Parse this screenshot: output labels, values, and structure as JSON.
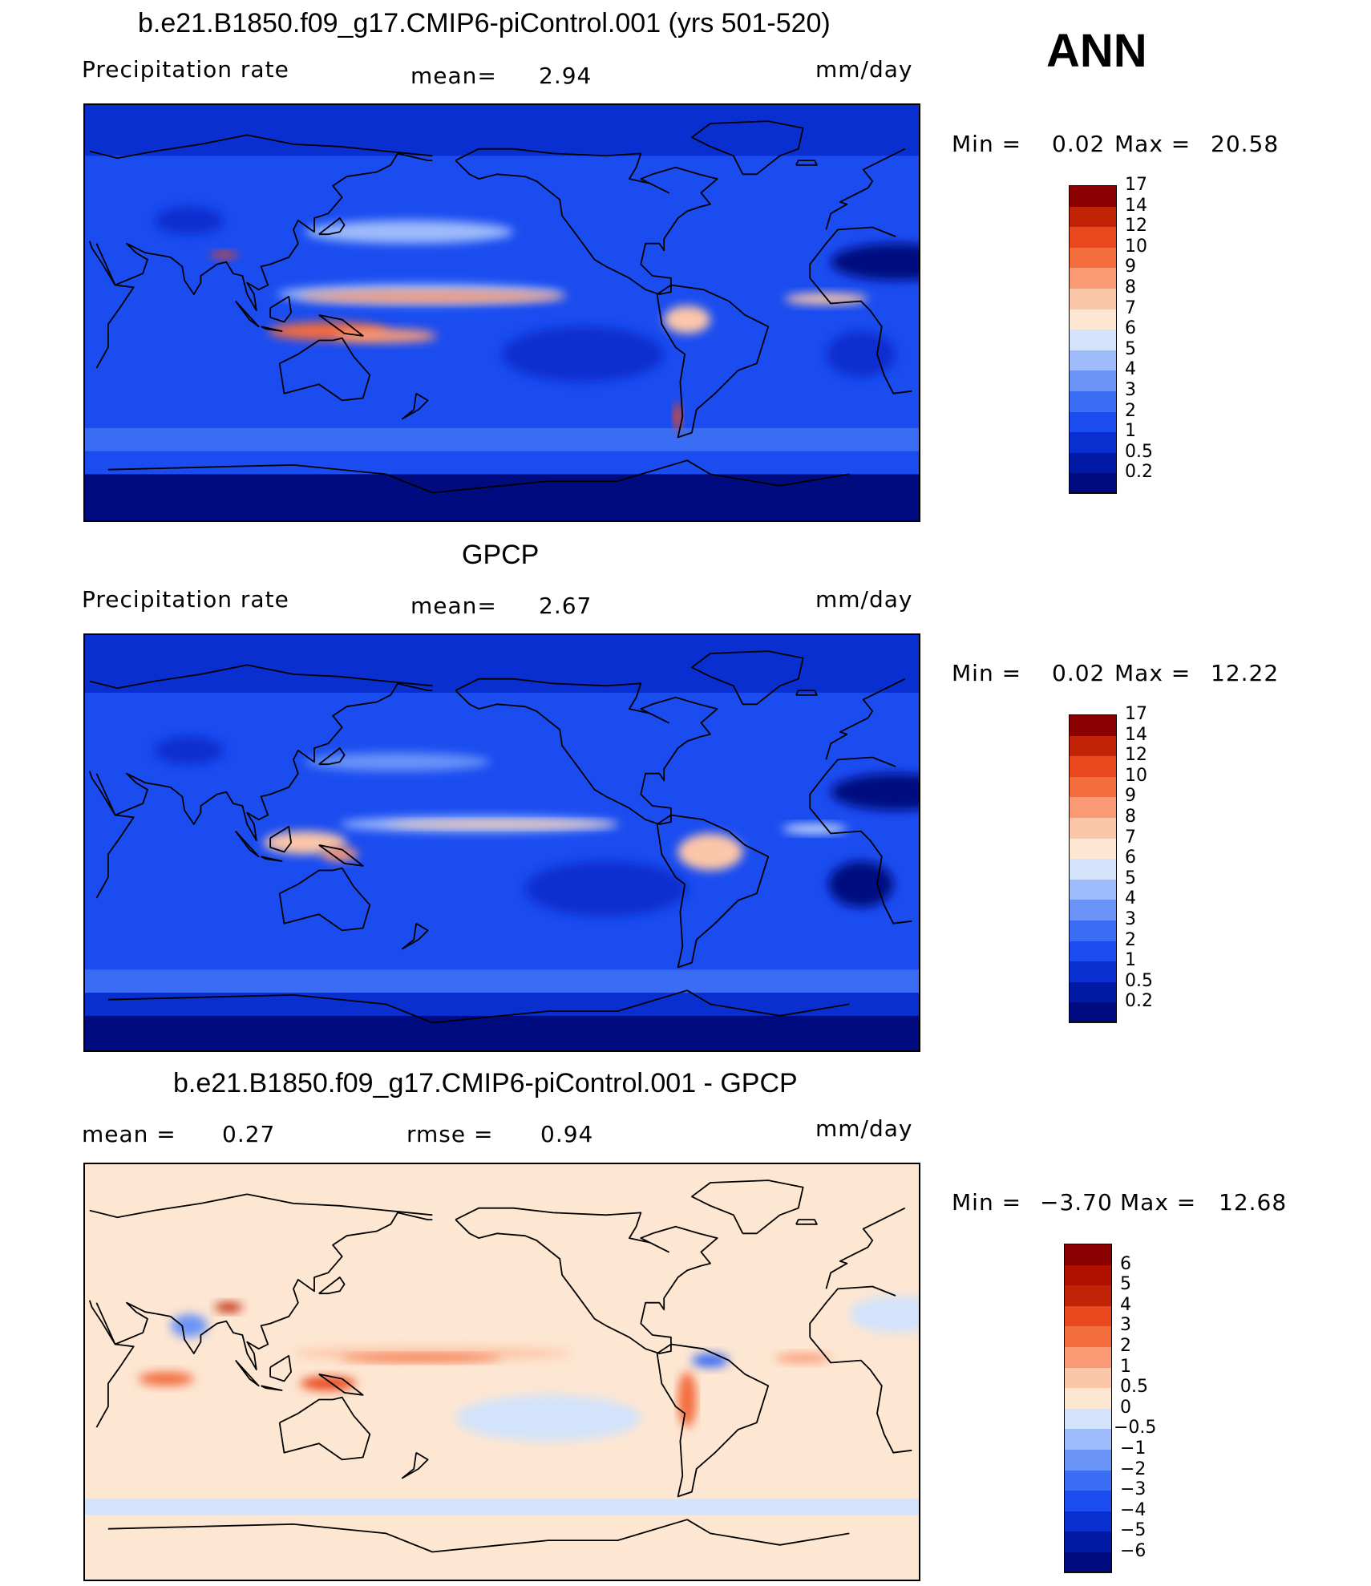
{
  "season": "ANN",
  "panels": [
    {
      "id": "model",
      "title": "b.e21.B1850.f09_g17.CMIP6-piControl.001 (yrs 501-520)",
      "left_label": "Precipitation  rate",
      "mid_label": "mean=",
      "mid_value": "2.94",
      "units": "mm/day",
      "min_label": "Min  =",
      "min_value": "0.02",
      "max_label": "Max  =",
      "max_value": "20.58",
      "colorbar": {
        "colors": [
          "#000b80",
          "#001aa6",
          "#0a2fd0",
          "#1a4cf0",
          "#3b6cf4",
          "#6b94f8",
          "#9ebbfb",
          "#d2e3fb",
          "#fde6d2",
          "#fcc6a8",
          "#f99a74",
          "#f36c3e",
          "#e9471d",
          "#c02306",
          "#8b0000"
        ],
        "labels": [
          "0.2",
          "0.5",
          "1",
          "2",
          "3",
          "4",
          "5",
          "6",
          "7",
          "8",
          "9",
          "10",
          "12",
          "14",
          "17"
        ]
      },
      "field": {
        "background": "#1a4cf0",
        "zonal_bands": [
          {
            "lat": [
              90,
              68
            ],
            "color": "#0a2fd0"
          },
          {
            "lat": [
              -50,
              -60
            ],
            "color": "#3b6cf4"
          },
          {
            "lat": [
              -60,
              -70
            ],
            "color": "#1a4cf0"
          },
          {
            "lat": [
              -70,
              -90
            ],
            "color": "#000b80"
          }
        ],
        "features": [
          {
            "lon": 175,
            "lat": 8,
            "rx": 62,
            "ry": 4.5,
            "color": "#9ebbfb"
          },
          {
            "lon": 180,
            "lat": 7,
            "rx": 58,
            "ry": 2.5,
            "color": "#f99a74"
          },
          {
            "lon": 135,
            "lat": -8,
            "rx": 26,
            "ry": 4,
            "color": "#f36c3e"
          },
          {
            "lon": 160,
            "lat": -10,
            "rx": 22,
            "ry": 3,
            "color": "#f99a74"
          },
          {
            "lon": 170,
            "lat": 35,
            "rx": 45,
            "ry": 5,
            "color": "#9ebbfb"
          },
          {
            "lon": 90,
            "lat": 25,
            "rx": 6,
            "ry": 1.5,
            "color": "#e9471d"
          },
          {
            "lon": 350,
            "lat": 6,
            "rx": 18,
            "ry": 2.5,
            "color": "#fcc6a8"
          },
          {
            "lon": 290,
            "lat": -3,
            "rx": 10,
            "ry": 6,
            "color": "#fcc6a8"
          },
          {
            "lon": 286,
            "lat": -45,
            "rx": 2,
            "ry": 6,
            "color": "#e9471d"
          },
          {
            "lon": 20,
            "lat": 22,
            "rx": 28,
            "ry": 8,
            "color": "#000b80"
          },
          {
            "lon": 245,
            "lat": -18,
            "rx": 35,
            "ry": 12,
            "color": "#0a2fd0"
          },
          {
            "lon": 5,
            "lat": -18,
            "rx": 15,
            "ry": 10,
            "color": "#0a2fd0"
          },
          {
            "lon": 75,
            "lat": 40,
            "rx": 15,
            "ry": 6,
            "color": "#0a2fd0"
          }
        ]
      }
    },
    {
      "id": "obs",
      "title": "GPCP",
      "left_label": "Precipitation  rate",
      "mid_label": "mean=",
      "mid_value": "2.67",
      "units": "mm/day",
      "min_label": "Min  =",
      "min_value": "0.02",
      "max_label": "Max  =",
      "max_value": "12.22",
      "colorbar": {
        "colors": [
          "#000b80",
          "#001aa6",
          "#0a2fd0",
          "#1a4cf0",
          "#3b6cf4",
          "#6b94f8",
          "#9ebbfb",
          "#d2e3fb",
          "#fde6d2",
          "#fcc6a8",
          "#f99a74",
          "#f36c3e",
          "#e9471d",
          "#c02306",
          "#8b0000"
        ],
        "labels": [
          "0.2",
          "0.5",
          "1",
          "2",
          "3",
          "4",
          "5",
          "6",
          "7",
          "8",
          "9",
          "10",
          "12",
          "14",
          "17"
        ]
      },
      "field": {
        "background": "#1a4cf0",
        "zonal_bands": [
          {
            "lat": [
              90,
              65
            ],
            "color": "#0a2fd0"
          },
          {
            "lat": [
              -55,
              -65
            ],
            "color": "#3b6cf4"
          },
          {
            "lat": [
              -65,
              -75
            ],
            "color": "#0a2fd0"
          },
          {
            "lat": [
              -75,
              -90
            ],
            "color": "#000b80"
          }
        ],
        "features": [
          {
            "lon": 200,
            "lat": 8,
            "rx": 60,
            "ry": 3.5,
            "color": "#9ebbfb"
          },
          {
            "lon": 210,
            "lat": 8,
            "rx": 50,
            "ry": 1.5,
            "color": "#fcc6a8"
          },
          {
            "lon": 125,
            "lat": 0,
            "rx": 18,
            "ry": 5,
            "color": "#fcc6a8"
          },
          {
            "lon": 140,
            "lat": -5,
            "rx": 8,
            "ry": 3,
            "color": "#f99a74"
          },
          {
            "lon": 165,
            "lat": 35,
            "rx": 40,
            "ry": 4,
            "color": "#6b94f8"
          },
          {
            "lon": 300,
            "lat": -4,
            "rx": 14,
            "ry": 8,
            "color": "#fcc6a8"
          },
          {
            "lon": 345,
            "lat": 6,
            "rx": 14,
            "ry": 2,
            "color": "#d2e3fb"
          },
          {
            "lon": 20,
            "lat": 22,
            "rx": 28,
            "ry": 8,
            "color": "#000b80"
          },
          {
            "lon": 255,
            "lat": -20,
            "rx": 35,
            "ry": 12,
            "color": "#0a2fd0"
          },
          {
            "lon": 5,
            "lat": -18,
            "rx": 14,
            "ry": 10,
            "color": "#000b80"
          },
          {
            "lon": 75,
            "lat": 40,
            "rx": 15,
            "ry": 6,
            "color": "#0a2fd0"
          }
        ]
      }
    },
    {
      "id": "diff",
      "title": "b.e21.B1850.f09_g17.CMIP6-piControl.001 - GPCP",
      "left_label": "mean  =",
      "left_value": "0.27",
      "mid_label": "rmse  =",
      "mid_value": "0.94",
      "units": "mm/day",
      "min_label": "Min  =",
      "min_value": "−3.70",
      "max_label": "Max  =",
      "max_value": "12.68",
      "colorbar": {
        "colors": [
          "#000b80",
          "#001aa6",
          "#0a2fd0",
          "#1a4cf0",
          "#3b6cf4",
          "#6b94f8",
          "#9ebbfb",
          "#d2e3fb",
          "#fde6d2",
          "#fcc6a8",
          "#f99a74",
          "#f36c3e",
          "#e9471d",
          "#c02306",
          "#b01000",
          "#8b0000"
        ],
        "labels": [
          "−6",
          "−5",
          "−4",
          "−3",
          "−2",
          "−1",
          "−0.5",
          "0",
          "0.5",
          "1",
          "2",
          "3",
          "4",
          "5",
          "6"
        ]
      },
      "field": {
        "background": "#fde6d2",
        "zonal_bands": [
          {
            "lat": [
              90,
              70
            ],
            "color": "#fde6d2"
          },
          {
            "lat": [
              -55,
              -62
            ],
            "color": "#d2e3fb"
          },
          {
            "lat": [
              -70,
              -78
            ],
            "color": "#fde6d2"
          }
        ],
        "features": [
          {
            "lon": 180,
            "lat": 8,
            "rx": 60,
            "ry": 3,
            "color": "#fcc6a8"
          },
          {
            "lon": 175,
            "lat": 6,
            "rx": 35,
            "ry": 1.5,
            "color": "#f36c3e"
          },
          {
            "lon": 65,
            "lat": -3,
            "rx": 12,
            "ry": 3,
            "color": "#f36c3e"
          },
          {
            "lon": 135,
            "lat": -5,
            "rx": 12,
            "ry": 3,
            "color": "#e9471d"
          },
          {
            "lon": 92,
            "lat": 28,
            "rx": 6,
            "ry": 2,
            "color": "#c02306"
          },
          {
            "lon": 290,
            "lat": -12,
            "rx": 4,
            "ry": 12,
            "color": "#f36c3e"
          },
          {
            "lon": 300,
            "lat": 5,
            "rx": 8,
            "ry": 3,
            "color": "#3b6cf4"
          },
          {
            "lon": 340,
            "lat": 6,
            "rx": 12,
            "ry": 2,
            "color": "#f99a74"
          },
          {
            "lon": 230,
            "lat": -20,
            "rx": 40,
            "ry": 10,
            "color": "#d2e3fb"
          },
          {
            "lon": 75,
            "lat": 20,
            "rx": 8,
            "ry": 5,
            "color": "#6b94f8"
          },
          {
            "lon": 20,
            "lat": 25,
            "rx": 20,
            "ry": 8,
            "color": "#d2e3fb"
          }
        ]
      }
    }
  ],
  "coastlines": [
    [
      [
        -10,
        36
      ],
      [
        -8,
        43
      ],
      [
        -1,
        47
      ],
      [
        -4,
        48
      ],
      [
        2,
        51
      ],
      [
        8,
        54
      ],
      [
        10,
        57
      ],
      [
        6,
        62
      ],
      [
        14,
        66
      ],
      [
        24,
        71
      ],
      [
        32,
        70
      ],
      [
        44,
        67
      ],
      [
        60,
        70
      ],
      [
        80,
        73
      ],
      [
        100,
        77
      ],
      [
        120,
        73
      ],
      [
        140,
        72
      ],
      [
        160,
        70
      ],
      [
        180,
        68
      ]
    ],
    [
      [
        -17,
        15
      ],
      [
        -17,
        21
      ],
      [
        -10,
        30
      ],
      [
        -5,
        36
      ],
      [
        10,
        37
      ],
      [
        20,
        33
      ],
      [
        32,
        31
      ],
      [
        33,
        28
      ],
      [
        37,
        22
      ],
      [
        43,
        12
      ],
      [
        51,
        11
      ],
      [
        45,
        2
      ],
      [
        40,
        -5
      ],
      [
        40,
        -15
      ],
      [
        35,
        -24
      ],
      [
        27,
        -34
      ],
      [
        19,
        -35
      ],
      [
        15,
        -27
      ],
      [
        12,
        -18
      ],
      [
        14,
        -6
      ],
      [
        9,
        1
      ],
      [
        5,
        5
      ],
      [
        -8,
        4
      ],
      [
        -17,
        15
      ]
    ],
    [
      [
        35,
        30
      ],
      [
        43,
        12
      ],
      [
        55,
        17
      ],
      [
        57,
        23
      ],
      [
        52,
        26
      ],
      [
        48,
        30
      ],
      [
        56,
        26
      ],
      [
        62,
        25
      ],
      [
        67,
        24
      ],
      [
        72,
        20
      ],
      [
        73,
        14
      ],
      [
        77,
        8
      ],
      [
        80,
        13
      ],
      [
        80,
        16
      ],
      [
        87,
        21
      ],
      [
        91,
        22
      ],
      [
        94,
        17
      ],
      [
        98,
        16
      ],
      [
        100,
        8
      ],
      [
        104,
        1
      ],
      [
        103,
        8
      ],
      [
        100,
        13
      ],
      [
        105,
        10
      ],
      [
        109,
        12
      ],
      [
        106,
        20
      ],
      [
        110,
        21
      ],
      [
        118,
        24
      ],
      [
        122,
        30
      ],
      [
        120,
        36
      ],
      [
        122,
        40
      ],
      [
        129,
        35
      ],
      [
        129,
        41
      ],
      [
        135,
        43
      ],
      [
        141,
        50
      ],
      [
        137,
        55
      ],
      [
        143,
        59
      ],
      [
        156,
        61
      ],
      [
        162,
        64
      ],
      [
        165,
        69
      ],
      [
        178,
        66
      ],
      [
        180,
        66
      ]
    ],
    [
      [
        95,
        5
      ],
      [
        105,
        -6
      ],
      [
        101,
        -3
      ],
      [
        95,
        5
      ]
    ],
    [
      [
        106,
        -6
      ],
      [
        115,
        -8
      ],
      [
        108,
        -7
      ],
      [
        106,
        -6
      ]
    ],
    [
      [
        110,
        2
      ],
      [
        118,
        7
      ],
      [
        119,
        0
      ],
      [
        116,
        -4
      ],
      [
        110,
        -2
      ],
      [
        110,
        2
      ]
    ],
    [
      [
        131,
        34
      ],
      [
        140,
        41
      ],
      [
        142,
        38
      ],
      [
        140,
        35
      ],
      [
        135,
        34
      ],
      [
        131,
        34
      ]
    ],
    [
      [
        131,
        -1
      ],
      [
        141,
        -3
      ],
      [
        150,
        -10
      ],
      [
        142,
        -9
      ],
      [
        131,
        -1
      ]
    ],
    [
      [
        114,
        -22
      ],
      [
        122,
        -18
      ],
      [
        131,
        -12
      ],
      [
        137,
        -12
      ],
      [
        141,
        -11
      ],
      [
        146,
        -19
      ],
      [
        153,
        -27
      ],
      [
        150,
        -37
      ],
      [
        141,
        -38
      ],
      [
        131,
        -31
      ],
      [
        116,
        -35
      ],
      [
        114,
        -22
      ]
    ],
    [
      [
        173,
        -35
      ],
      [
        178,
        -38
      ],
      [
        174,
        -42
      ],
      [
        167,
        -46
      ],
      [
        172,
        -42
      ],
      [
        173,
        -35
      ]
    ],
    [
      [
        190,
        66
      ],
      [
        196,
        60
      ],
      [
        200,
        58
      ],
      [
        208,
        60
      ],
      [
        220,
        59
      ],
      [
        225,
        57
      ],
      [
        235,
        49
      ],
      [
        236,
        42
      ],
      [
        242,
        34
      ],
      [
        250,
        23
      ],
      [
        255,
        20
      ],
      [
        265,
        15
      ],
      [
        272,
        10
      ],
      [
        278,
        8
      ],
      [
        283,
        9
      ],
      [
        283,
        15
      ],
      [
        275,
        16
      ],
      [
        270,
        21
      ],
      [
        272,
        30
      ],
      [
        278,
        30
      ],
      [
        280,
        27
      ],
      [
        280,
        32
      ],
      [
        286,
        41
      ],
      [
        290,
        44
      ],
      [
        296,
        46
      ],
      [
        300,
        47
      ],
      [
        296,
        52
      ],
      [
        303,
        58
      ],
      [
        295,
        60
      ],
      [
        285,
        63
      ],
      [
        275,
        60
      ],
      [
        270,
        58
      ],
      [
        282,
        52
      ],
      [
        274,
        56
      ],
      [
        265,
        58
      ],
      [
        268,
        63
      ],
      [
        270,
        69
      ],
      [
        255,
        68
      ],
      [
        232,
        69
      ],
      [
        215,
        71
      ],
      [
        200,
        71
      ],
      [
        190,
        66
      ]
    ],
    [
      [
        277,
        8
      ],
      [
        283,
        12
      ],
      [
        297,
        10
      ],
      [
        308,
        5
      ],
      [
        315,
        -1
      ],
      [
        325,
        -6
      ],
      [
        320,
        -22
      ],
      [
        312,
        -25
      ],
      [
        302,
        -35
      ],
      [
        294,
        -42
      ],
      [
        292,
        -52
      ],
      [
        286,
        -54
      ],
      [
        288,
        -45
      ],
      [
        287,
        -30
      ],
      [
        289,
        -18
      ],
      [
        285,
        -15
      ],
      [
        279,
        -5
      ],
      [
        277,
        8
      ]
    ],
    [
      [
        314,
        60
      ],
      [
        320,
        60
      ],
      [
        330,
        68
      ],
      [
        338,
        71
      ],
      [
        340,
        80
      ],
      [
        325,
        83
      ],
      [
        300,
        82
      ],
      [
        292,
        76
      ],
      [
        300,
        72
      ],
      [
        310,
        68
      ],
      [
        314,
        60
      ]
    ],
    [
      [
        -23,
        64
      ],
      [
        -22,
        66
      ],
      [
        -15,
        66
      ],
      [
        -14,
        64
      ],
      [
        -23,
        64
      ]
    ],
    [
      [
        0,
        -70
      ],
      [
        40,
        -68
      ],
      [
        80,
        -67
      ],
      [
        120,
        -66
      ],
      [
        160,
        -70
      ],
      [
        180,
        -78
      ],
      [
        200,
        -76
      ],
      [
        230,
        -73
      ],
      [
        260,
        -73
      ],
      [
        290,
        -64
      ],
      [
        300,
        -70
      ],
      [
        330,
        -75
      ],
      [
        360,
        -70
      ]
    ]
  ]
}
